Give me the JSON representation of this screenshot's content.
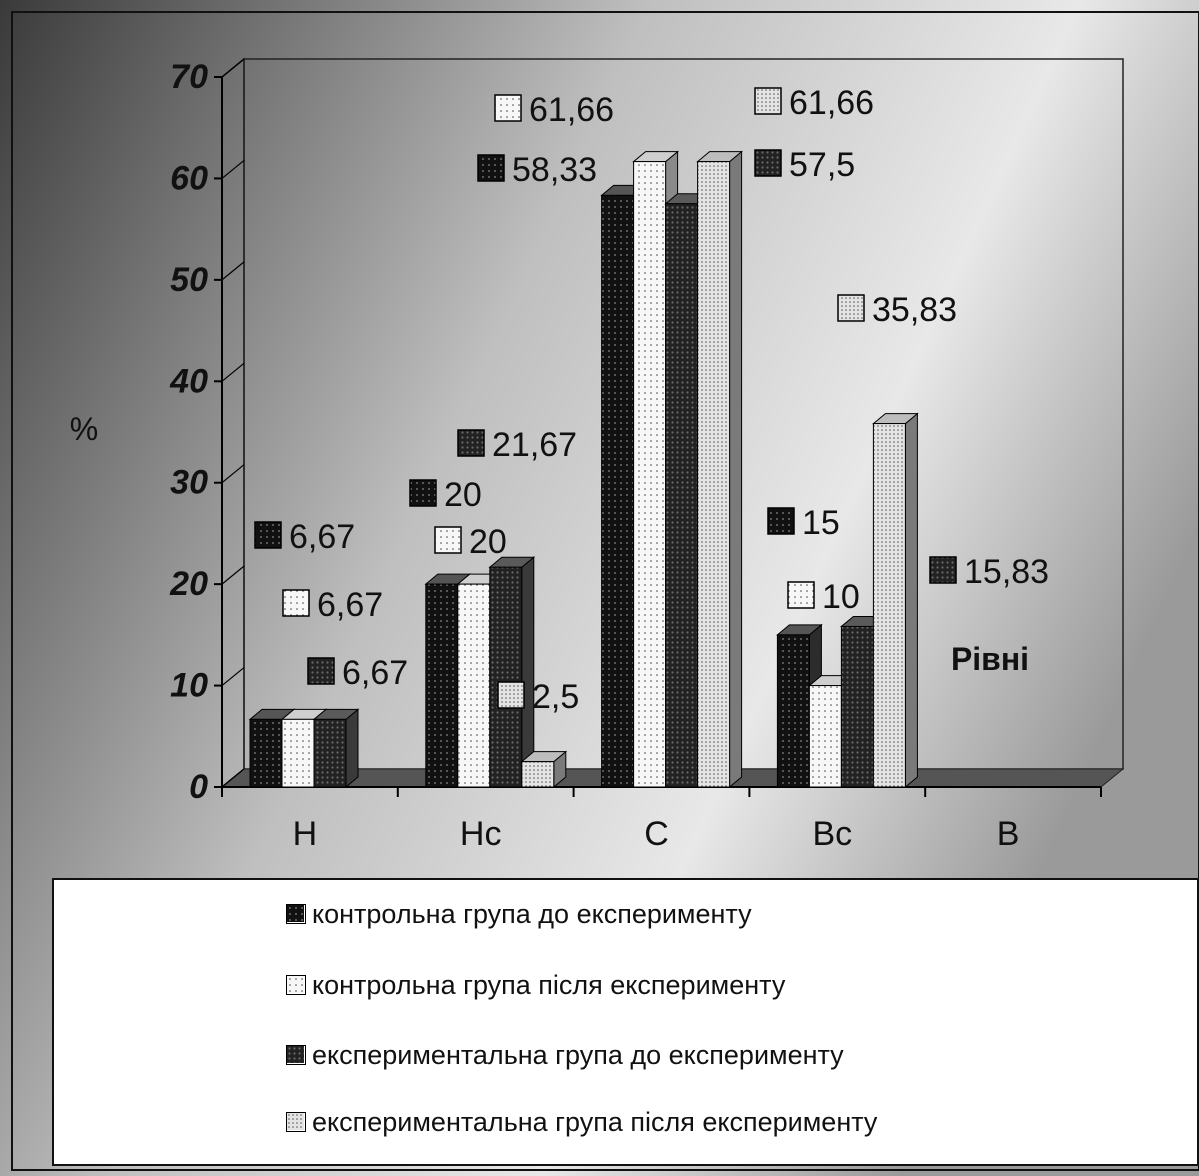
{
  "chart_data": {
    "type": "bar",
    "title": "",
    "xlabel": "Рівні",
    "ylabel": "%",
    "ylim": [
      0,
      70
    ],
    "yticks": [
      "0",
      "10",
      "20",
      "30",
      "40",
      "50",
      "60",
      "70"
    ],
    "categories": [
      "Н",
      "Нс",
      "С",
      "Вс",
      "В"
    ],
    "series": [
      {
        "name": "контрольна група до експерименту",
        "values": [
          6.67,
          20,
          58.33,
          15,
          0
        ],
        "labels": [
          "6,67",
          "20",
          "58,33",
          "15",
          ""
        ]
      },
      {
        "name": "контрольна група після експерименту",
        "values": [
          6.67,
          20,
          61.66,
          10,
          0
        ],
        "labels": [
          "6,67",
          "20",
          "61,66",
          "10",
          ""
        ]
      },
      {
        "name": "експериментальна група до експерименту",
        "values": [
          6.67,
          21.67,
          57.5,
          15.83,
          0
        ],
        "labels": [
          "6,67",
          "21,67",
          "57,5",
          "15,83",
          ""
        ]
      },
      {
        "name": "експериментальна група після експерименту",
        "values": [
          0,
          2.5,
          61.66,
          35.83,
          0
        ],
        "labels": [
          "",
          "2,5",
          "61,66",
          "35,83",
          ""
        ]
      }
    ],
    "grid": false,
    "legend_position": "bottom",
    "colors": {
      "series_fill": [
        "#111111",
        "#f5f5f5",
        "#2a2a2a",
        "#dcdcdc"
      ],
      "floor": "#555555",
      "axis": "#000000"
    }
  }
}
